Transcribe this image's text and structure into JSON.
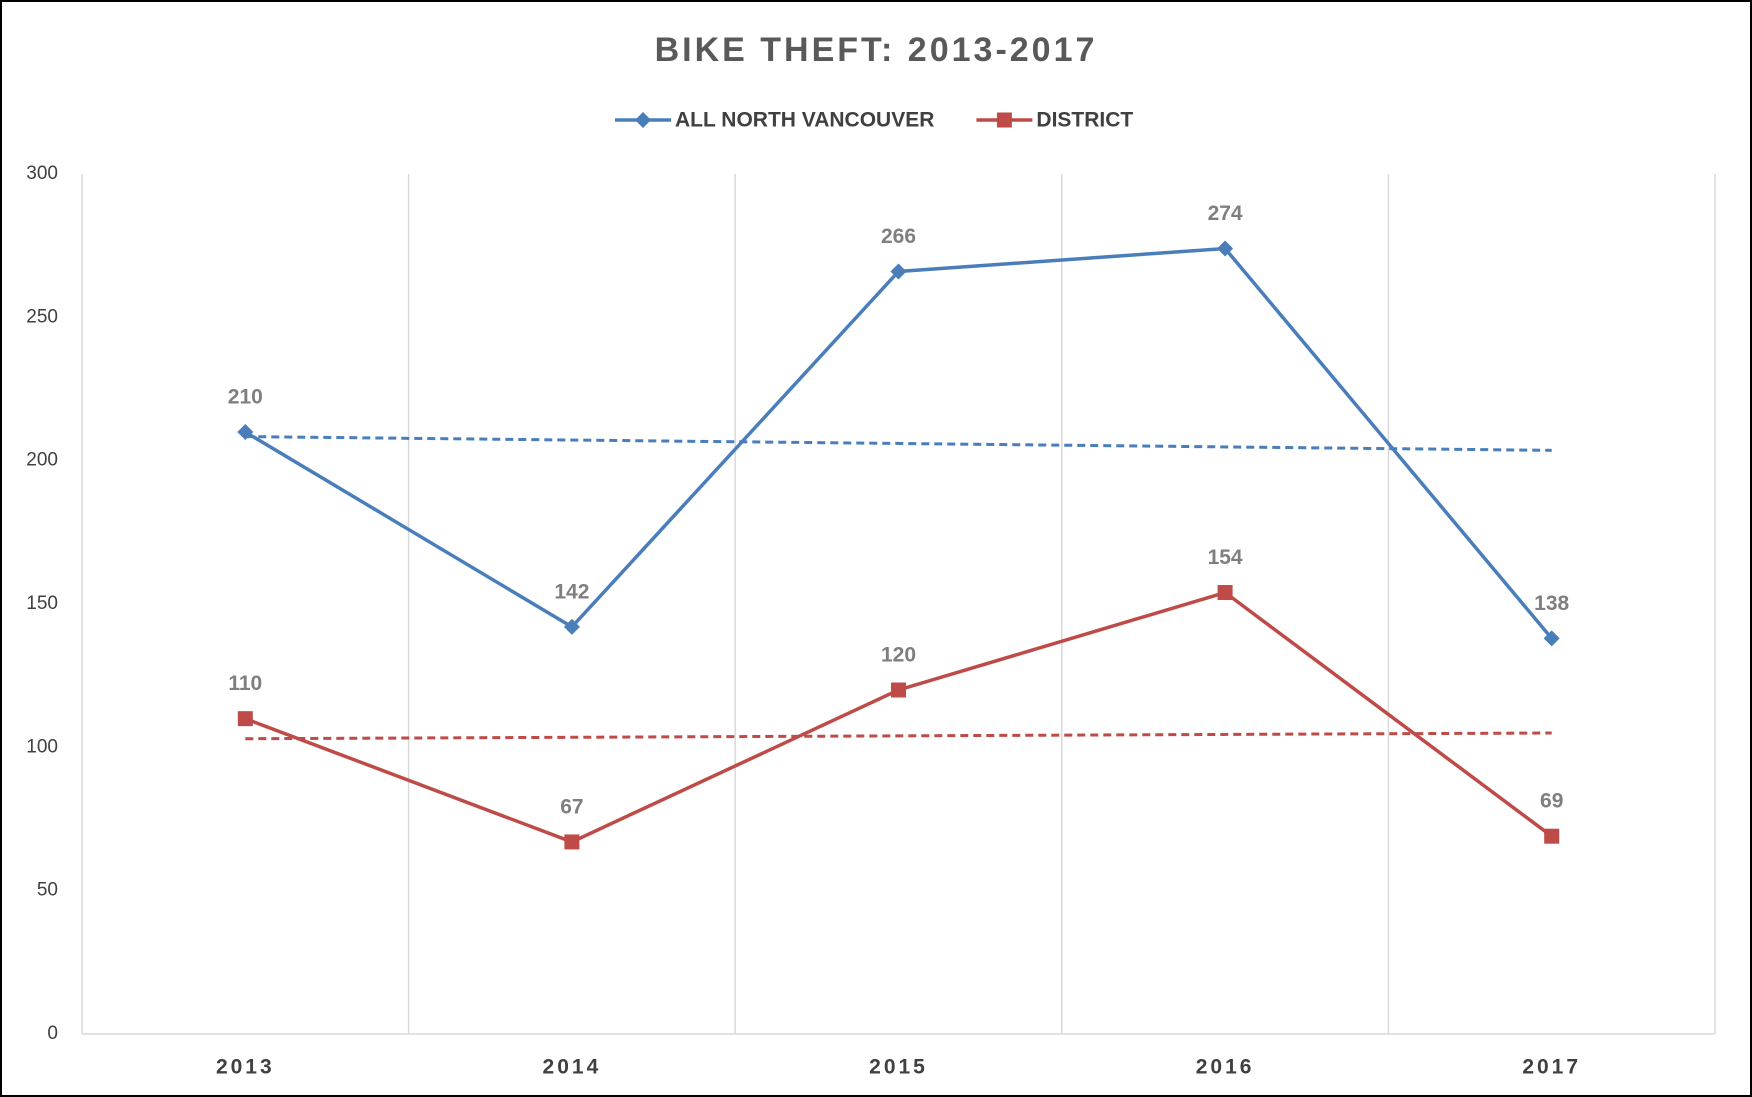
{
  "chart_data": {
    "type": "line",
    "title": "BIKE THEFT: 2013-2017",
    "categories": [
      "2013",
      "2014",
      "2015",
      "2016",
      "2017"
    ],
    "series": [
      {
        "name": "ALL NORTH VANCOUVER",
        "color": "#4a7ebb",
        "marker": "diamond",
        "values": [
          210,
          142,
          266,
          274,
          138
        ]
      },
      {
        "name": "DISTRICT",
        "color": "#be4b48",
        "marker": "square",
        "values": [
          110,
          67,
          120,
          154,
          69
        ]
      }
    ],
    "trendline": "linear",
    "ylim": [
      0,
      300
    ],
    "yticks": [
      0,
      50,
      100,
      150,
      200,
      250,
      300
    ],
    "legend": "top",
    "data_labels": true
  }
}
